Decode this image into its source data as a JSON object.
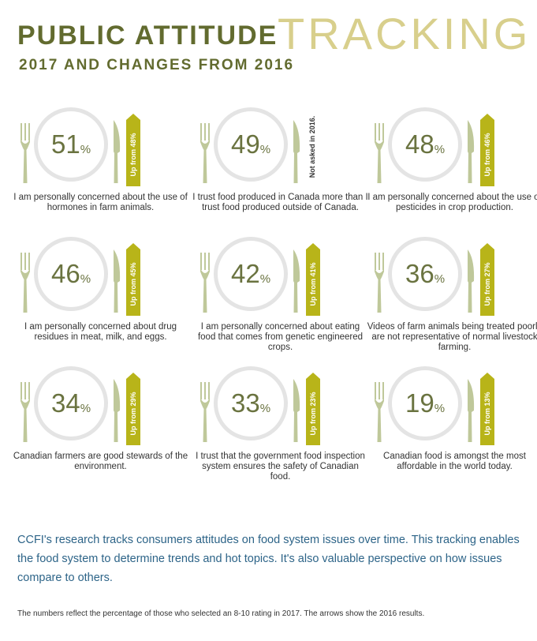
{
  "header": {
    "title_main": "PUBLIC ATTITUDE",
    "title_accent": "TRACKING",
    "subtitle": "2017 AND CHANGES FROM 2016"
  },
  "colors": {
    "title_dark": "#626b2f",
    "title_light": "#d8cf8c",
    "percent": "#6a7340",
    "badge": "#b8b419",
    "utensil": "#bfc89a",
    "plate": "#e4e4e4",
    "body_text": "#2d6488"
  },
  "icons": [
    "fork-icon",
    "plate-icon",
    "knife-icon"
  ],
  "items": [
    {
      "value": "51",
      "unit": "%",
      "badge": "Up from 48%",
      "note": "",
      "label": "I am personally concerned about the use of hormones in farm animals."
    },
    {
      "value": "49",
      "unit": "%",
      "badge": "",
      "note": "Not asked in 2016.",
      "label": "I trust food produced in Canada more than I trust food produced outside of Canada."
    },
    {
      "value": "48",
      "unit": "%",
      "badge": "Up from 46%",
      "note": "",
      "label": "I am personally concerned about the use of pesticides in crop production."
    },
    {
      "value": "46",
      "unit": "%",
      "badge": "Up from 45%",
      "note": "",
      "label": "I am personally concerned about drug residues in meat, milk, and eggs."
    },
    {
      "value": "42",
      "unit": "%",
      "badge": "Up from 41%",
      "note": "",
      "label": "I am personally concerned about eating food that comes from genetic engineered crops."
    },
    {
      "value": "36",
      "unit": "%",
      "badge": "Up from 27%",
      "note": "",
      "label": "Videos of farm animals being treated poorly are not representative of normal livestock farming."
    },
    {
      "value": "34",
      "unit": "%",
      "badge": "Up from 29%",
      "note": "",
      "label": "Canadian farmers are good stewards of the environment."
    },
    {
      "value": "33",
      "unit": "%",
      "badge": "Up from 23%",
      "note": "",
      "label": "I trust that the government food inspection system ensures the safety of Canadian food."
    },
    {
      "value": "19",
      "unit": "%",
      "badge": "Up from 13%",
      "note": "",
      "label": "Canadian food is amongst the most affordable in the world today."
    }
  ],
  "body_text": "CCFI's research tracks consumers attitudes on food system issues over time. This tracking enables the food system to determine trends and hot topics. It's also valuable perspective on how issues compare to others.",
  "footnote": "The numbers reflect the percentage of those who selected an 8-10 rating in 2017. The arrows show the 2016 results."
}
